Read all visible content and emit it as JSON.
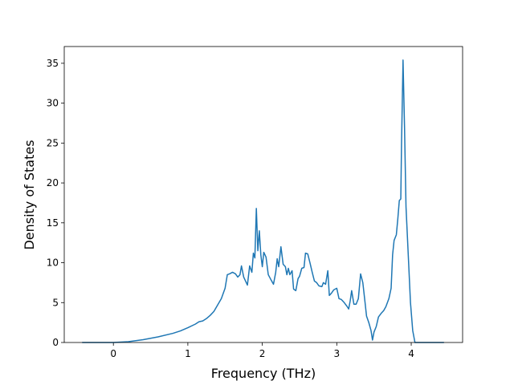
{
  "chart_data": {
    "type": "line",
    "xlabel": "Frequency (THz)",
    "ylabel": "Density of States",
    "xlim": [
      -0.66,
      4.69
    ],
    "ylim": [
      0,
      37.1
    ],
    "xticks": [
      0,
      1,
      2,
      3,
      4
    ],
    "yticks": [
      0,
      5,
      10,
      15,
      20,
      25,
      30,
      35
    ],
    "series": [
      {
        "color": "#1f77b4",
        "x": [
          -0.42,
          0,
          0.2,
          0.4,
          0.6,
          0.8,
          0.9,
          1.0,
          1.1,
          1.15,
          1.2,
          1.25,
          1.3,
          1.35,
          1.4,
          1.45,
          1.5,
          1.53,
          1.56,
          1.6,
          1.64,
          1.67,
          1.7,
          1.72,
          1.75,
          1.8,
          1.83,
          1.86,
          1.88,
          1.9,
          1.92,
          1.94,
          1.96,
          1.98,
          2.0,
          2.02,
          2.05,
          2.08,
          2.12,
          2.15,
          2.18,
          2.2,
          2.22,
          2.25,
          2.28,
          2.31,
          2.33,
          2.35,
          2.37,
          2.4,
          2.42,
          2.45,
          2.48,
          2.5,
          2.53,
          2.56,
          2.58,
          2.61,
          2.64,
          2.67,
          2.7,
          2.73,
          2.76,
          2.8,
          2.82,
          2.85,
          2.88,
          2.9,
          2.93,
          2.96,
          3.0,
          3.03,
          3.06,
          3.1,
          3.14,
          3.16,
          3.18,
          3.2,
          3.23,
          3.26,
          3.29,
          3.32,
          3.35,
          3.38,
          3.4,
          3.43,
          3.46,
          3.48,
          3.5,
          3.53,
          3.56,
          3.6,
          3.63,
          3.66,
          3.7,
          3.73,
          3.75,
          3.77,
          3.8,
          3.82,
          3.84,
          3.86,
          3.87,
          3.89,
          3.91,
          3.93,
          3.96,
          3.99,
          4.02,
          4.05,
          4.44
        ],
        "values": [
          0,
          0,
          0.1,
          0.35,
          0.7,
          1.15,
          1.45,
          1.85,
          2.3,
          2.6,
          2.7,
          3.0,
          3.4,
          3.9,
          4.7,
          5.5,
          6.8,
          8.5,
          8.6,
          8.8,
          8.6,
          8.2,
          8.5,
          9.6,
          8.2,
          7.2,
          9.6,
          8.8,
          11.2,
          10.6,
          16.8,
          11.5,
          14.0,
          11.0,
          9.5,
          11.3,
          10.7,
          8.5,
          7.8,
          7.3,
          8.8,
          10.5,
          9.5,
          12.0,
          9.8,
          9.5,
          8.5,
          9.3,
          8.5,
          9.0,
          6.7,
          6.5,
          8.0,
          8.3,
          9.3,
          9.4,
          11.2,
          11.1,
          10.0,
          8.8,
          7.7,
          7.5,
          7.1,
          7.0,
          7.5,
          7.3,
          9.0,
          5.9,
          6.2,
          6.6,
          6.8,
          5.5,
          5.4,
          5.0,
          4.5,
          4.2,
          5.2,
          6.5,
          4.8,
          4.8,
          5.5,
          8.6,
          7.5,
          5.0,
          3.3,
          2.5,
          1.5,
          0.3,
          1.3,
          2.0,
          3.2,
          3.7,
          4.0,
          4.5,
          5.5,
          6.8,
          11.0,
          12.8,
          13.5,
          15.5,
          17.8,
          18.0,
          25,
          35.4,
          27,
          17,
          11,
          5,
          1.5,
          0,
          0
        ]
      }
    ]
  }
}
